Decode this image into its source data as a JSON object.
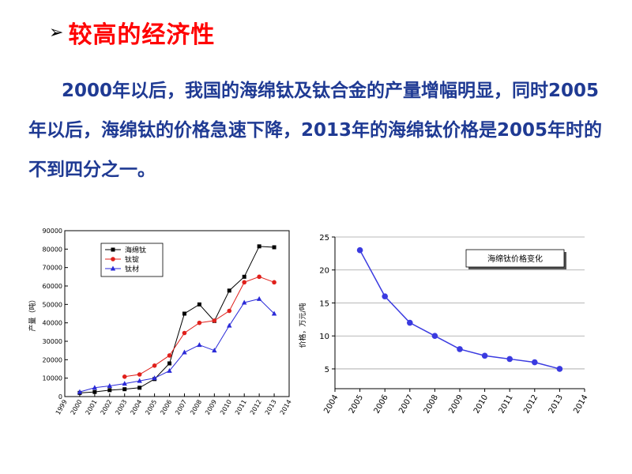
{
  "title": {
    "arrow": "➢",
    "text": "较高的经济性"
  },
  "body_text": "2000年以后，我国的海绵钛及钛合金的产量增幅明显，同时2005年以后，海绵钛的价格急速下降，2013年的海绵钛价格是2005年时的不到四分之一。",
  "colors": {
    "title": "#ff0000",
    "body": "#1f3a93",
    "line_black": "#000000",
    "line_red": "#e0201b",
    "line_blue": "#2a2ad8",
    "price_line": "#3a3ae0"
  },
  "chart_data": [
    {
      "type": "line",
      "title": "",
      "xlabel": "",
      "ylabel": "产量（吨）",
      "x_ticks": [
        "1999",
        "2000",
        "2001",
        "2002",
        "2003",
        "2004",
        "2005",
        "2006",
        "2007",
        "2008",
        "2009",
        "2010",
        "2011",
        "2012",
        "2013",
        "2014"
      ],
      "y_ticks": [
        "0",
        "10000",
        "20000",
        "30000",
        "40000",
        "50000",
        "60000",
        "70000",
        "80000",
        "90000"
      ],
      "xlim": [
        1999,
        2014
      ],
      "ylim": [
        0,
        90000
      ],
      "legend_position": "top-left",
      "grid": false,
      "series": [
        {
          "name": "海绵钛",
          "marker": "square",
          "points": [
            [
              2000,
              2000
            ],
            [
              2001,
              2500
            ],
            [
              2002,
              3500
            ],
            [
              2003,
              4000
            ],
            [
              2004,
              4800
            ],
            [
              2005,
              9500
            ],
            [
              2006,
              18000
            ],
            [
              2007,
              45000
            ],
            [
              2008,
              50000
            ],
            [
              2009,
              41000
            ],
            [
              2010,
              57500
            ],
            [
              2011,
              65000
            ],
            [
              2012,
              81500
            ],
            [
              2013,
              81000
            ]
          ]
        },
        {
          "name": "钛锭",
          "marker": "circle",
          "points": [
            [
              2003,
              10800
            ],
            [
              2004,
              12000
            ],
            [
              2005,
              16800
            ],
            [
              2006,
              22300
            ],
            [
              2007,
              34500
            ],
            [
              2008,
              40000
            ],
            [
              2009,
              41200
            ],
            [
              2010,
              46500
            ],
            [
              2011,
              62000
            ],
            [
              2012,
              65000
            ],
            [
              2013,
              62000
            ]
          ]
        },
        {
          "name": "钛材",
          "marker": "triangle",
          "points": [
            [
              2000,
              2500
            ],
            [
              2001,
              4800
            ],
            [
              2002,
              5800
            ],
            [
              2003,
              7000
            ],
            [
              2004,
              8500
            ],
            [
              2005,
              10000
            ],
            [
              2006,
              14000
            ],
            [
              2007,
              24000
            ],
            [
              2008,
              28000
            ],
            [
              2009,
              25000
            ],
            [
              2010,
              38500
            ],
            [
              2011,
              51000
            ],
            [
              2012,
              53000
            ],
            [
              2013,
              45000
            ]
          ]
        }
      ]
    },
    {
      "type": "line",
      "title": "",
      "legend_label": "海绵钛价格变化",
      "xlabel": "",
      "ylabel": "价格，万元/吨",
      "x_ticks": [
        "2004",
        "2005",
        "2006",
        "2007",
        "2008",
        "2009",
        "2010",
        "2011",
        "2012",
        "2013",
        "2014"
      ],
      "y_ticks": [
        "5",
        "10",
        "15",
        "20",
        "25"
      ],
      "xlim": [
        2004,
        2014
      ],
      "ylim": [
        2,
        25
      ],
      "grid": true,
      "series": [
        {
          "name": "海绵钛价格变化",
          "points": [
            [
              2005,
              23
            ],
            [
              2006,
              16
            ],
            [
              2007,
              12
            ],
            [
              2008,
              10
            ],
            [
              2009,
              8
            ],
            [
              2010,
              7
            ],
            [
              2011,
              6.5
            ],
            [
              2012,
              6
            ],
            [
              2013,
              5
            ]
          ]
        }
      ]
    }
  ]
}
